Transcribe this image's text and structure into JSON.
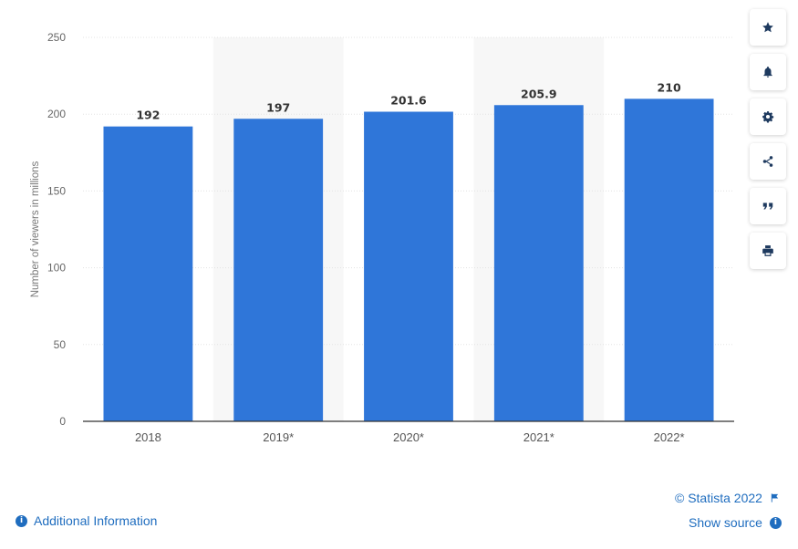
{
  "chart_data": {
    "type": "bar",
    "categories": [
      "2018",
      "2019*",
      "2020*",
      "2021*",
      "2022*"
    ],
    "values": [
      192,
      197,
      201.6,
      205.9,
      210
    ],
    "value_labels": [
      "192",
      "197",
      "201.6",
      "205.9",
      "210"
    ],
    "title": "",
    "xlabel": "",
    "ylabel": "Number of viewers in millions",
    "ylim": [
      0,
      250
    ],
    "yticks": [
      0,
      50,
      100,
      150,
      200,
      250
    ],
    "grid": true,
    "bar_color": "#2f76d9",
    "legend": "none"
  },
  "toolbar": {
    "icons": [
      "star-icon",
      "bell-icon",
      "gear-icon",
      "share-icon",
      "quote-icon",
      "print-icon"
    ]
  },
  "footer": {
    "copyright": "© Statista 2022",
    "show_source": "Show source",
    "additional_info": "Additional Information"
  }
}
